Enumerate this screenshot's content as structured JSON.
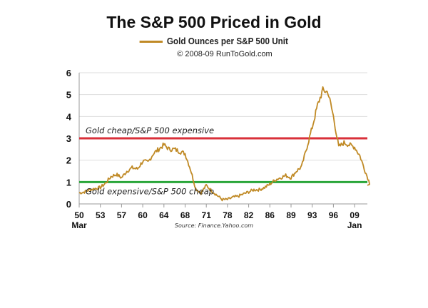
{
  "title": "The S&P 500 Priced in Gold",
  "copyright": "© 2008-09 RunToGold.com",
  "source": "Source: Finance.Yahoo.com",
  "chart_data": {
    "type": "line",
    "title": "The S&P 500 Priced in Gold",
    "series": [
      {
        "name": "Gold Ounces per S&P 500 Unit",
        "color": "#c08a26"
      }
    ],
    "x_ticks": [
      "50",
      "53",
      "57",
      "60",
      "64",
      "68",
      "71",
      "78",
      "82",
      "86",
      "89",
      "93",
      "96",
      "09"
    ],
    "x_tick_sublabels": {
      "0": "Mar",
      "13": "Jan"
    },
    "y_ticks": [
      0,
      1,
      2,
      3,
      4,
      5,
      6
    ],
    "ylim": [
      0,
      6
    ],
    "values": [
      0.5,
      0.55,
      0.65,
      0.7,
      0.75,
      0.95,
      1.25,
      1.35,
      1.2,
      1.5,
      1.65,
      1.6,
      1.95,
      1.9,
      2.3,
      2.5,
      2.7,
      2.5,
      2.5,
      2.4,
      2.3,
      1.6,
      0.7,
      0.5,
      0.85,
      0.6,
      0.4,
      0.2,
      0.2,
      0.3,
      0.35,
      0.45,
      0.55,
      0.65,
      0.65,
      0.75,
      0.9,
      1.1,
      1.2,
      1.3,
      1.2,
      1.5,
      1.7,
      2.6,
      3.5,
      4.5,
      5.2,
      5.1,
      4.0,
      2.6,
      2.8,
      2.7,
      2.6,
      2.2,
      1.5,
      0.85
    ],
    "reference_lines": [
      {
        "value": 3,
        "label": "Gold cheap/S&P 500 expensive",
        "color": "#d9303a"
      },
      {
        "value": 1,
        "label": "Gold expensive/S&P 500 cheap",
        "color": "#2aa63a"
      }
    ],
    "grid": true,
    "legend": "top-center"
  }
}
